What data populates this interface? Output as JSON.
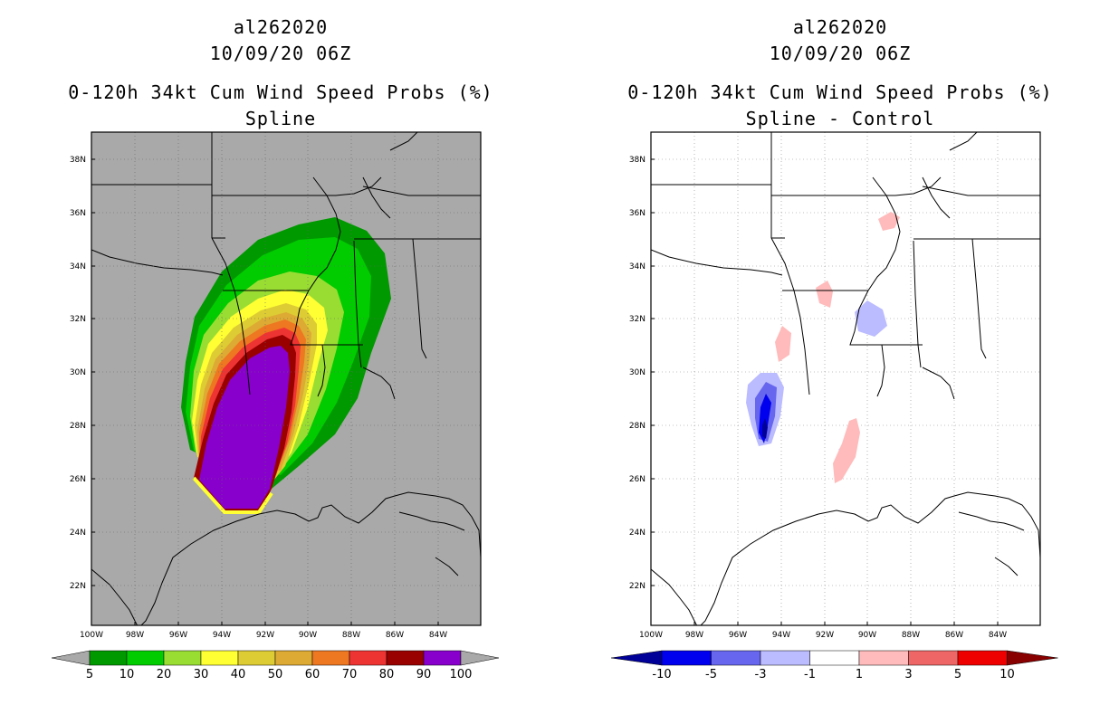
{
  "left_panel": {
    "storm_id": "al262020",
    "datetime": "10/09/20 06Z",
    "product": "0-120h 34kt Cum Wind Speed Probs (%)",
    "subtitle": "Spline",
    "background_color": "#a9a9a9",
    "colorbar_labels": [
      "5",
      "10",
      "20",
      "30",
      "40",
      "50",
      "60",
      "70",
      "80",
      "90",
      "100"
    ],
    "colorbar_colors": [
      "#009900",
      "#00cc00",
      "#99dd33",
      "#ffff33",
      "#ddcc33",
      "#ddaa33",
      "#ee7722",
      "#ee3333",
      "#990000",
      "#8800cc"
    ]
  },
  "right_panel": {
    "storm_id": "al262020",
    "datetime": "10/09/20 06Z",
    "product": "0-120h 34kt Cum Wind Speed Probs (%)",
    "subtitle": "Spline - Control",
    "background_color": "#ffffff",
    "colorbar_labels": [
      "-10",
      "-5",
      "-3",
      "-1",
      "1",
      "3",
      "5",
      "10"
    ],
    "colorbar_colors": [
      "#000099",
      "#0000ee",
      "#6666ee",
      "#bbbbff",
      "#ffffff",
      "#ffbbbb",
      "#ee6666",
      "#ee0000",
      "#880000"
    ]
  },
  "map_axes": {
    "lat_labels": [
      "38N",
      "36N",
      "34N",
      "32N",
      "30N",
      "28N",
      "26N",
      "24N",
      "22N"
    ],
    "lon_labels": [
      "100W",
      "98W",
      "96W",
      "94W",
      "92W",
      "90W",
      "88W",
      "86W",
      "84W"
    ]
  }
}
